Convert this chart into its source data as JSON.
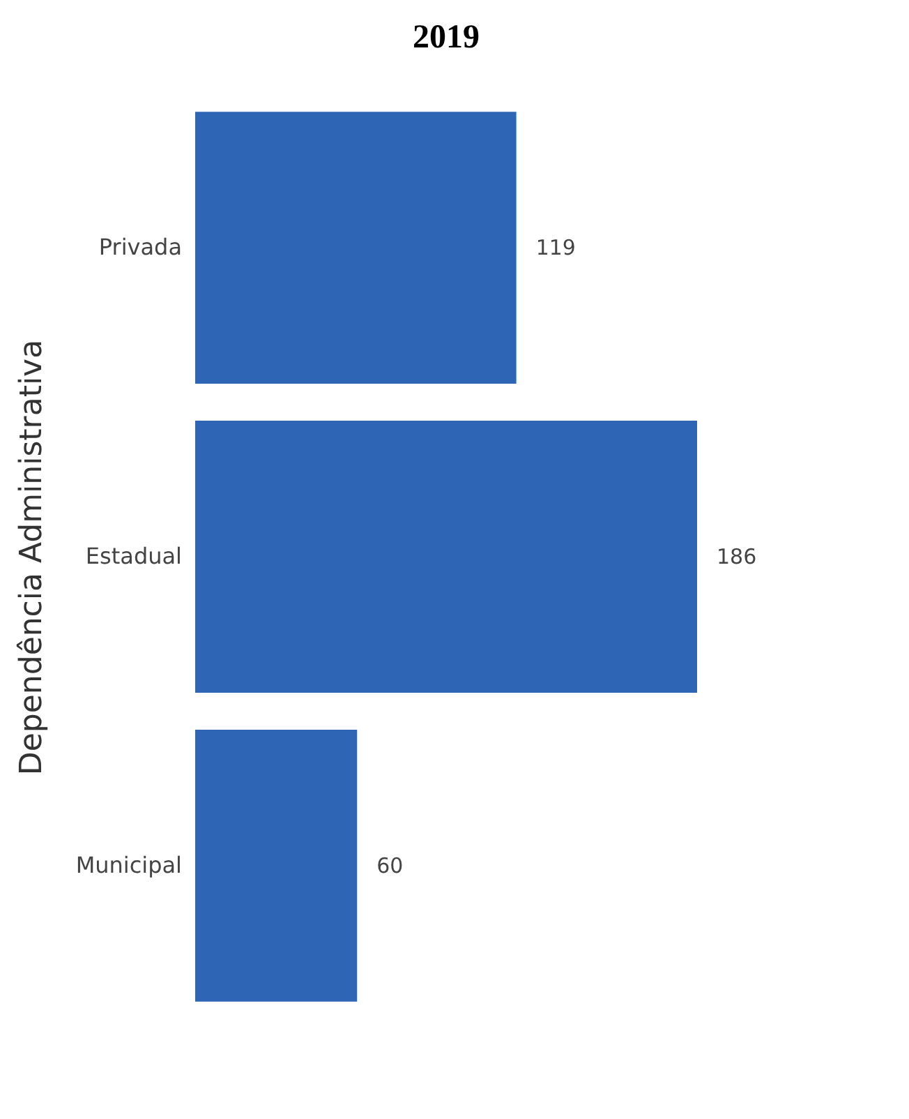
{
  "chart_data": {
    "type": "bar",
    "orientation": "horizontal",
    "title": "2019",
    "ylabel": "Dependência Administrativa",
    "categories": [
      "Privada",
      "Estadual",
      "Municipal"
    ],
    "values": [
      119,
      186,
      60
    ],
    "color": "#2e65b5",
    "data_labels": true
  }
}
